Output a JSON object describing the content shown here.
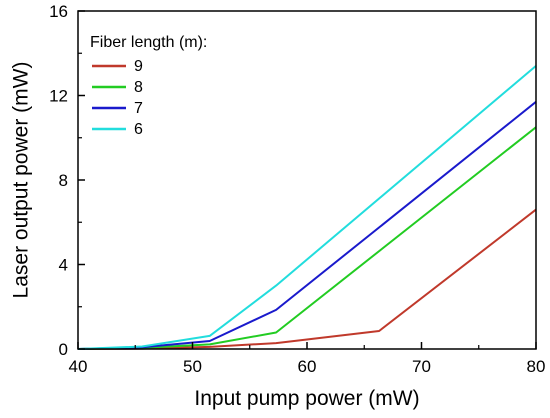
{
  "chart_data": {
    "type": "line",
    "title": "",
    "xlabel": "Input pump power (mW)",
    "ylabel": "Laser output power (mW)",
    "xlim": [
      40,
      80
    ],
    "ylim": [
      0,
      16
    ],
    "xticks": [
      40,
      50,
      60,
      70,
      80
    ],
    "yticks": [
      0,
      4,
      8,
      12,
      16
    ],
    "grid": false,
    "legend": {
      "title": "Fiber length (m):",
      "placement": "top-left"
    },
    "series": [
      {
        "name": "9",
        "color": "#c0392b",
        "x": [
          40,
          45.6,
          51.5,
          57.3,
          66.3,
          80
        ],
        "y": [
          0,
          0.02,
          0.1,
          0.28,
          0.85,
          6.6
        ]
      },
      {
        "name": "8",
        "color": "#22cc22",
        "x": [
          40,
          45.6,
          51.5,
          57.3,
          80
        ],
        "y": [
          0,
          0.05,
          0.22,
          0.78,
          10.5
        ]
      },
      {
        "name": "7",
        "color": "#1a1acc",
        "x": [
          40,
          45.6,
          51.5,
          57.3,
          80
        ],
        "y": [
          0,
          0.08,
          0.38,
          1.85,
          11.7
        ]
      },
      {
        "name": "6",
        "color": "#22dddd",
        "x": [
          40,
          45.6,
          51.5,
          57.3,
          80
        ],
        "y": [
          0,
          0.12,
          0.62,
          3.0,
          13.4
        ]
      }
    ]
  }
}
